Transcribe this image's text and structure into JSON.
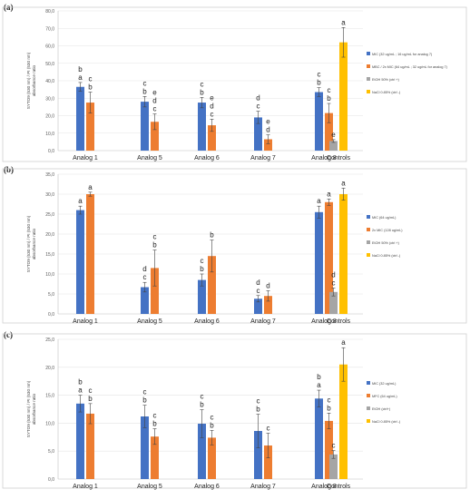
{
  "chart_data": [
    {
      "panel": "(a)",
      "type": "bar",
      "ylabel": "SYTO9 (530 nm) / PI (530 nm) absorbance ratio",
      "ylim": [
        0,
        80
      ],
      "yticks": [
        "0,0",
        "10,0",
        "20,0",
        "30,0",
        "40,0",
        "50,0",
        "60,0",
        "70,0",
        "80,0"
      ],
      "categories": [
        "Analog 1",
        "Analog 5",
        "Analog 6",
        "Analog 7",
        "Analog 8"
      ],
      "series": [
        {
          "name": "MIC (32 ug/mL ; 16 ug/mL for analog 7)",
          "color": "#4472c4",
          "values": [
            36.5,
            28.0,
            27.5,
            19.0,
            33.5
          ],
          "errors": [
            2.5,
            3.0,
            3.0,
            3.5,
            2.5
          ],
          "letters": [
            [
              "b",
              "a"
            ],
            [
              "c",
              "b"
            ],
            [
              "c",
              "b"
            ],
            [
              "d",
              "c"
            ],
            [
              "c",
              "b"
            ]
          ]
        },
        {
          "name": "MBC / 2x MIC (64 ug/mL ; 32 ug/mL for analog 7)",
          "color": "#ed7d31",
          "values": [
            27.5,
            16.5,
            14.5,
            6.5,
            21.5
          ],
          "errors": [
            6.0,
            4.5,
            3.5,
            2.5,
            5.5
          ],
          "letters": [
            [
              "c",
              "b"
            ],
            [
              "e",
              "d",
              "c"
            ],
            [
              "e",
              "d",
              "c"
            ],
            [
              "e",
              "d"
            ],
            [
              "c",
              "b"
            ]
          ]
        }
      ],
      "control_category": "Controls",
      "controls": [
        {
          "name": "EtOH 50% (ctrl +)",
          "color": "#a5a5a5",
          "value": 5.5,
          "error": 0.8,
          "letters": [
            "e"
          ]
        },
        {
          "name": "NaCl 0.85% (ctrl -)",
          "color": "#ffc000",
          "value": 62.0,
          "error": 8.5,
          "letters": [
            "a"
          ]
        }
      ],
      "legend_position": "right"
    },
    {
      "panel": "(b)",
      "type": "bar",
      "ylabel": "SYTO9 (530 nm) / PI (530 nm) absorbance ratio",
      "ylim": [
        0,
        35
      ],
      "yticks": [
        "0,0",
        "5,0",
        "10,0",
        "15,0",
        "20,0",
        "25,0",
        "30,0",
        "35,0"
      ],
      "categories": [
        "Analog 1",
        "Analog 5",
        "Analog 6",
        "Analog 7",
        "Analog 8"
      ],
      "series": [
        {
          "name": "MIC (64 ug/mL)",
          "color": "#4472c4",
          "values": [
            26.0,
            6.7,
            8.5,
            3.8,
            25.5
          ],
          "errors": [
            1.0,
            1.2,
            1.5,
            0.8,
            1.5
          ],
          "letters": [
            [
              "a"
            ],
            [
              "d",
              "c"
            ],
            [
              "c",
              "b"
            ],
            [
              "d",
              "c"
            ],
            [
              "a"
            ]
          ]
        },
        {
          "name": "2x MIC (128 ug/mL)",
          "color": "#ed7d31",
          "values": [
            30.0,
            11.5,
            14.5,
            4.5,
            28.0
          ],
          "errors": [
            0.5,
            4.5,
            4.0,
            1.3,
            0.8
          ],
          "letters": [
            [
              "a"
            ],
            [
              "c",
              "b"
            ],
            [
              "b"
            ],
            [
              "d"
            ],
            [
              "a"
            ]
          ]
        }
      ],
      "control_category": "Controls",
      "controls": [
        {
          "name": "EtOH 50% (ctrl +)",
          "color": "#a5a5a5",
          "value": 5.5,
          "error": 1.0,
          "letters": [
            "d",
            "c"
          ]
        },
        {
          "name": "NaCl 0.85% (ctrl -)",
          "color": "#ffc000",
          "value": 30.0,
          "error": 1.5,
          "letters": [
            "a"
          ]
        }
      ],
      "legend_position": "right"
    },
    {
      "panel": "(c)",
      "type": "bar",
      "ylabel": "SYTO9 (530 nm) / PI (530 nm) absorbance ratio",
      "ylim": [
        0,
        25
      ],
      "yticks": [
        "0,0",
        "5,0",
        "10,0",
        "15,0",
        "20,0",
        "25,0"
      ],
      "categories": [
        "Analog 1",
        "Analog 5",
        "Analog 6",
        "Analog 7",
        "Analog 8"
      ],
      "series": [
        {
          "name": "MIC (32 ug/mL)",
          "color": "#4472c4",
          "values": [
            13.5,
            11.2,
            9.9,
            8.6,
            14.4
          ],
          "errors": [
            1.5,
            2.0,
            2.5,
            3.0,
            1.5
          ],
          "letters": [
            [
              "b",
              "a"
            ],
            [
              "c",
              "b"
            ],
            [
              "c",
              "b"
            ],
            [
              "c",
              "b"
            ],
            [
              "b",
              "a"
            ]
          ]
        },
        {
          "name": "MFC (64 ug/mL)",
          "color": "#ed7d31",
          "values": [
            11.7,
            7.6,
            7.4,
            6.0,
            10.4
          ],
          "errors": [
            1.8,
            1.4,
            1.3,
            2.2,
            1.4
          ],
          "letters": [
            [
              "c",
              "b"
            ],
            [
              "c",
              "b"
            ],
            [
              "c",
              "b"
            ],
            [
              "c"
            ],
            [
              "c",
              "b"
            ]
          ]
        }
      ],
      "control_category": "Controls",
      "controls": [
        {
          "name": "EtOH (ctrl+)",
          "color": "#a5a5a5",
          "value": 4.4,
          "error": 0.7,
          "letters": [
            "c"
          ]
        },
        {
          "name": "NaCl 0.85% (ctrl -)",
          "color": "#ffc000",
          "value": 20.5,
          "error": 3.0,
          "letters": [
            "a"
          ]
        }
      ],
      "legend_position": "right"
    }
  ]
}
